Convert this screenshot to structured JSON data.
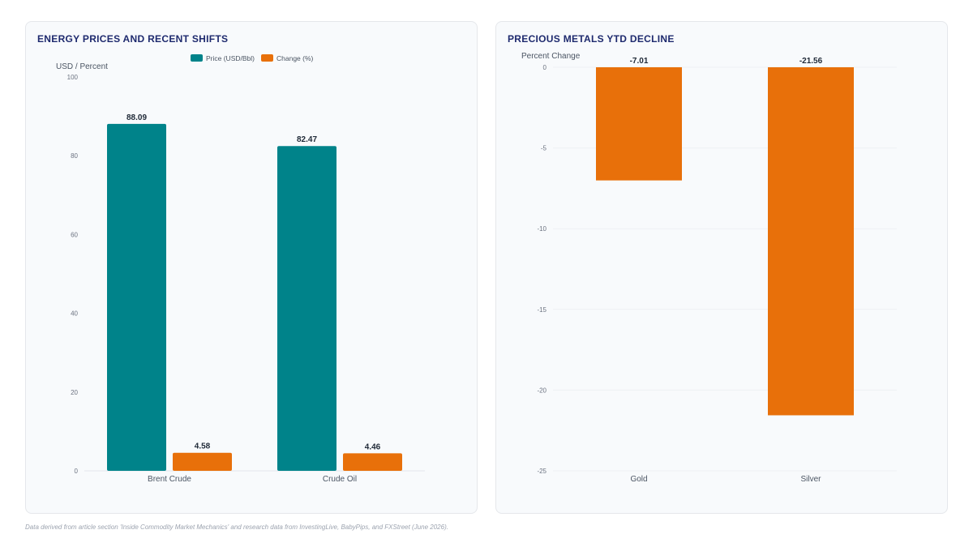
{
  "footnote": "Data derived from article section 'Inside Commodity Market Mechanics' and research data from InvestingLive, BabyPips, and FXStreet (June 2026).",
  "chart_data": [
    {
      "type": "bar",
      "title": "ENERGY PRICES AND RECENT SHIFTS",
      "ylabel": "USD / Percent",
      "categories": [
        "Brent Crude",
        "Crude Oil"
      ],
      "series": [
        {
          "name": "Price (USD/Bbl)",
          "color": "#00838a",
          "values": [
            88.09,
            82.47
          ]
        },
        {
          "name": "Change (%)",
          "color": "#e8700a",
          "values": [
            4.58,
            4.46
          ]
        }
      ],
      "ylim": [
        0,
        100
      ],
      "yticks": [
        0,
        20,
        40,
        60,
        80,
        100
      ],
      "legend": "top-center",
      "grid": false
    },
    {
      "type": "bar",
      "title": "PRECIOUS METALS YTD DECLINE",
      "ylabel": "Percent Change",
      "categories": [
        "Gold",
        "Silver"
      ],
      "series": [
        {
          "color": "#e8700a",
          "values": [
            -7.01,
            -21.56
          ]
        }
      ],
      "ylim": [
        -25,
        0
      ],
      "yticks": [
        0,
        -5,
        -10,
        -15,
        -20,
        -25
      ],
      "legend": "none",
      "grid": true
    }
  ]
}
